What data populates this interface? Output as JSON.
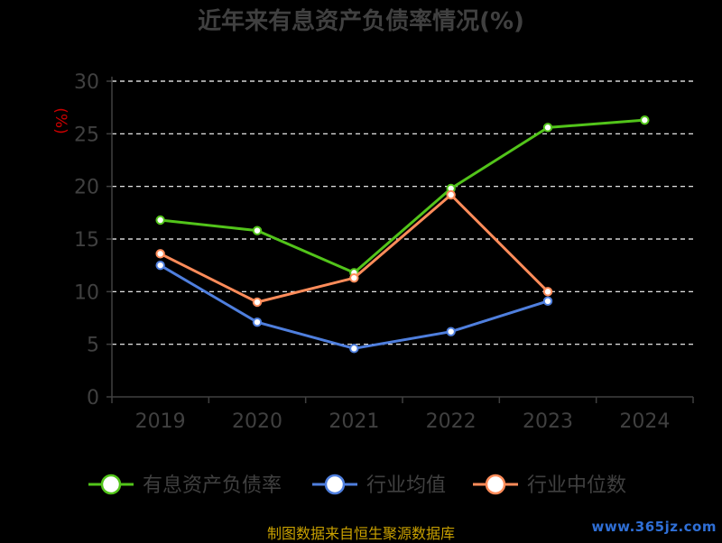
{
  "chart_data": {
    "type": "line",
    "title": "近年来有息资产负债率情况(%)",
    "ylabel": "(%)",
    "xlabel": "",
    "categories": [
      "2019",
      "2020",
      "2021",
      "2022",
      "2023",
      "2024"
    ],
    "ylim": [
      0,
      30
    ],
    "yticks": [
      0,
      5,
      10,
      15,
      20,
      25,
      30
    ],
    "grid": true,
    "legend_position": "bottom",
    "series": [
      {
        "name": "有息资产负债率",
        "color": "#52c41a",
        "values": [
          16.8,
          15.8,
          11.8,
          19.8,
          25.6,
          26.3
        ]
      },
      {
        "name": "行业均值",
        "color": "#4f7fde",
        "values": [
          12.5,
          7.1,
          4.6,
          6.2,
          9.1,
          null
        ]
      },
      {
        "name": "行业中位数",
        "color": "#ff8c5a",
        "values": [
          13.6,
          9.0,
          11.3,
          19.2,
          10.0,
          null
        ]
      }
    ]
  },
  "footer": {
    "source": "制图数据来自恒生聚源数据库",
    "watermark": "www.365jz.com"
  }
}
